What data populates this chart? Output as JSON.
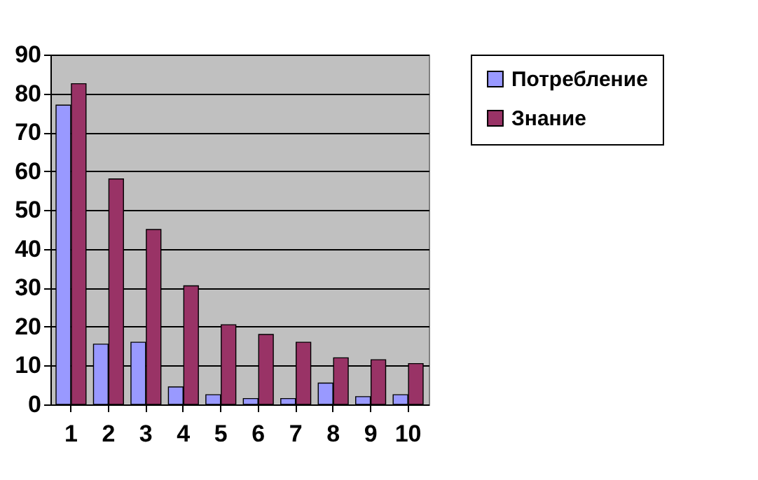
{
  "chart_data": {
    "type": "bar",
    "categories": [
      "1",
      "2",
      "3",
      "4",
      "5",
      "6",
      "7",
      "8",
      "9",
      "10"
    ],
    "series": [
      {
        "name": "Потребление",
        "color": "#9999ff",
        "values": [
          77,
          15.5,
          16,
          4.5,
          2.5,
          1.5,
          1.5,
          5.5,
          2,
          2.5
        ]
      },
      {
        "name": "Знание",
        "color": "#993366",
        "values": [
          82.5,
          58,
          45,
          30.5,
          20.5,
          18,
          16,
          12,
          11.5,
          10.5
        ]
      }
    ],
    "ylim": [
      0,
      90
    ],
    "yticks": [
      0,
      10,
      20,
      30,
      40,
      50,
      60,
      70,
      80,
      90
    ],
    "grid": "y",
    "legend": "right"
  }
}
